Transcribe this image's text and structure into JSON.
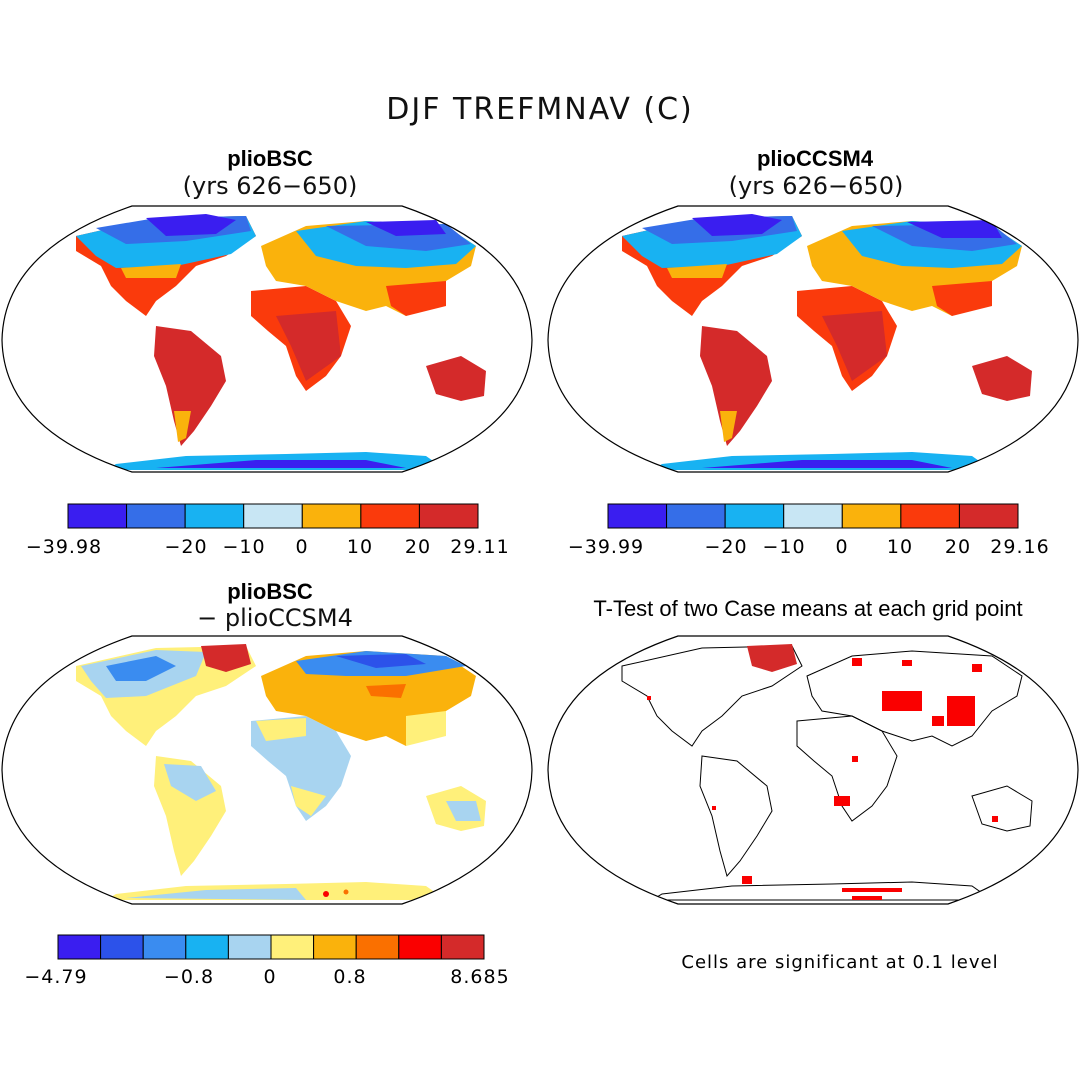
{
  "title": "DJF TREFMNAV (C)",
  "panels": [
    {
      "id": "tl",
      "title": "plioBSC",
      "subtitle": "(yrs 626−650)",
      "kind": "climate"
    },
    {
      "id": "tr",
      "title": "plioCCSM4",
      "subtitle": "(yrs 626−650)",
      "kind": "climate"
    },
    {
      "id": "bl",
      "title": "plioBSC",
      "subtitle": "− plioCCSM4",
      "kind": "difference"
    },
    {
      "id": "br",
      "title": "T-Test of two Case means at each grid point",
      "kind": "significance"
    }
  ],
  "colorbars": [
    {
      "id": "cb1",
      "colors": [
        "#3a1ef0",
        "#356ee8",
        "#18b2f2",
        "#c8e6f4",
        "#fab20c",
        "#fa3a0c",
        "#d42a2a"
      ],
      "labels": [
        "−39.98",
        "−20",
        "−10",
        "0",
        "10",
        "20",
        "29.11"
      ]
    },
    {
      "id": "cb2",
      "colors": [
        "#3a1ef0",
        "#356ee8",
        "#18b2f2",
        "#c8e6f4",
        "#fab20c",
        "#fa3a0c",
        "#d42a2a"
      ],
      "labels": [
        "−39.99",
        "−20",
        "−10",
        "0",
        "10",
        "20",
        "29.16"
      ]
    },
    {
      "id": "cb3",
      "colors": [
        "#3a1ef0",
        "#2c52ea",
        "#3a8cf0",
        "#18b2f2",
        "#a8d4f0",
        "#fff07a",
        "#fab20c",
        "#fa7000",
        "#fa0000",
        "#d42a2a"
      ],
      "labels": [
        "−4.79",
        "−0.8",
        "0",
        "0.8",
        "8.685"
      ]
    }
  ],
  "significance_note": "Cells are significant at 0.1 level"
}
